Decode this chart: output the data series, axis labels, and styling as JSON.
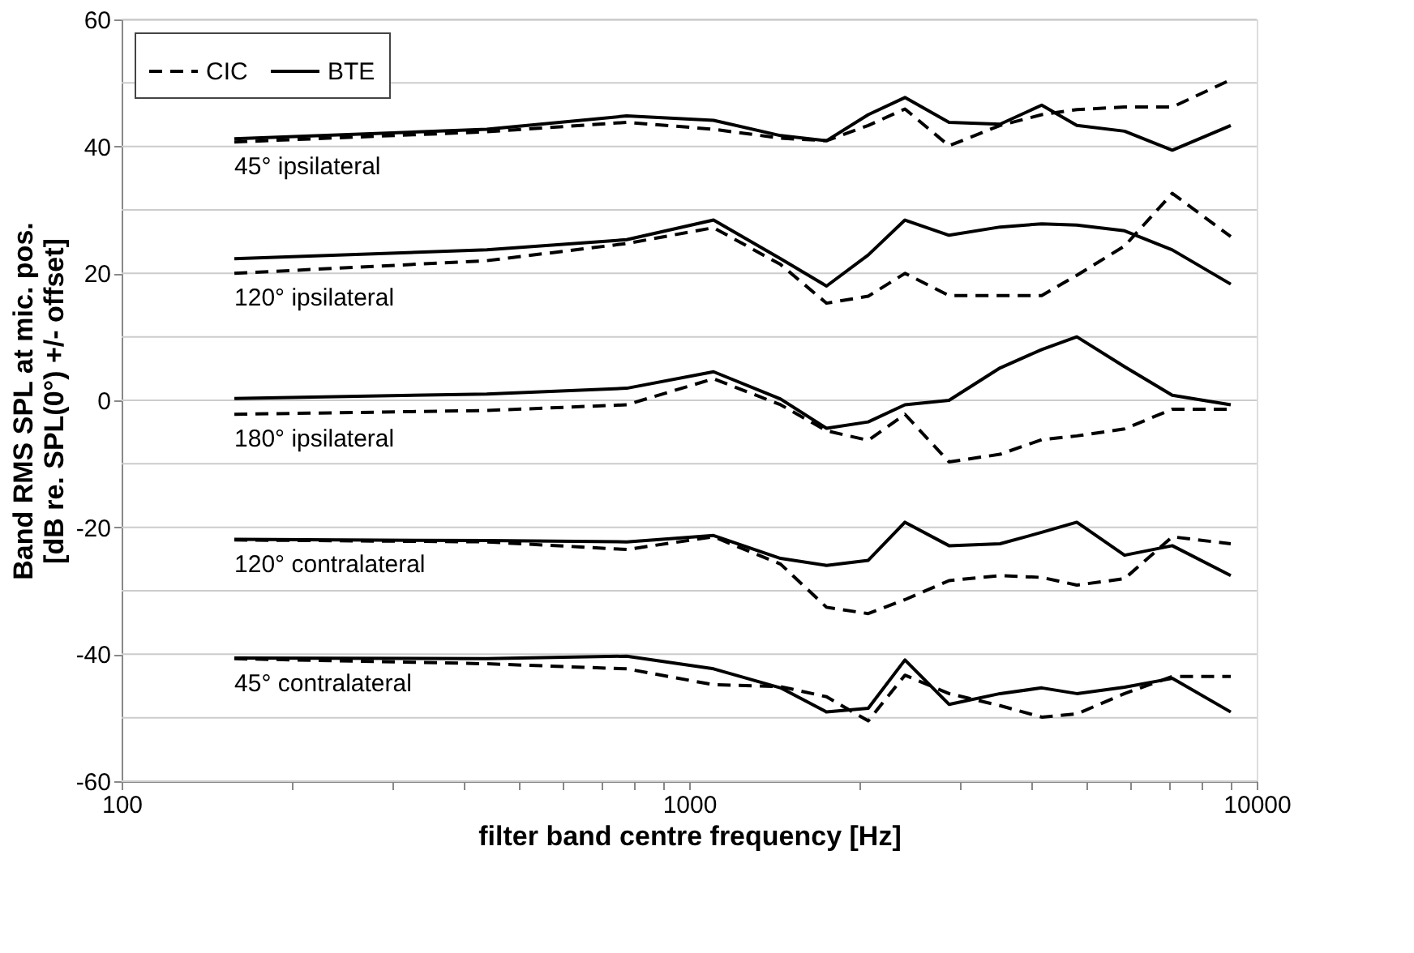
{
  "chart_data": {
    "type": "line",
    "xlabel": "filter band centre frequency [Hz]",
    "ylabel": "Band RMS SPL at mic. pos. [dB re. SPL(0°) +/- offset]",
    "x": [
      158,
      440,
      776,
      1104,
      1449,
      1746,
      2068,
      2400,
      2870,
      3530,
      4180,
      4820,
      5850,
      7100,
      9000
    ],
    "series": [
      {
        "name": "CIC",
        "color": "#000000",
        "line_style": "dashed",
        "values": [
          40.7,
          42.3,
          43.8,
          42.7,
          41.3,
          40.9,
          43.3,
          45.9,
          40.1,
          43.3,
          45,
          45.8,
          46.2,
          46.2,
          50.5
        ]
      },
      {
        "name": "BTE",
        "color": "#000000",
        "line_style": "solid",
        "values": [
          41.2,
          42.7,
          44.8,
          44.1,
          41.7,
          40.9,
          45,
          47.7,
          43.8,
          43.5,
          46.5,
          43.3,
          42.4,
          39.4,
          43.3
        ]
      },
      {
        "color": "#000000",
        "line_style": "dashed",
        "values": [
          20,
          22,
          24.7,
          27.2,
          21.4,
          15.3,
          16.4,
          20,
          16.5,
          16.5,
          16.5,
          19.7,
          24.3,
          32.6,
          25.8
        ]
      },
      {
        "color": "#000000",
        "line_style": "solid",
        "values": [
          22.3,
          23.7,
          25.3,
          28.4,
          22.3,
          18,
          22.9,
          28.4,
          26,
          27.3,
          27.8,
          27.6,
          26.7,
          23.7,
          18.3
        ]
      },
      {
        "color": "#000000",
        "line_style": "dashed",
        "values": [
          -2.2,
          -1.6,
          -0.7,
          3.4,
          -0.7,
          -4.8,
          -6.3,
          -2.2,
          -9.7,
          -8.5,
          -6.2,
          -5.6,
          -4.5,
          -1.4,
          -1.4
        ]
      },
      {
        "color": "#000000",
        "line_style": "solid",
        "values": [
          0.3,
          1,
          1.9,
          4.5,
          0.2,
          -4.4,
          -3.4,
          -0.7,
          0,
          5.1,
          8,
          10,
          5.3,
          0.8,
          -0.7
        ]
      },
      {
        "color": "#000000",
        "line_style": "dashed",
        "values": [
          -22,
          -22.3,
          -23.5,
          -21.5,
          -25.8,
          -32.6,
          -33.6,
          -31.4,
          -28.4,
          -27.6,
          -27.9,
          -29.1,
          -28.1,
          -21.5,
          -22.6
        ]
      },
      {
        "color": "#000000",
        "line_style": "solid",
        "values": [
          -21.9,
          -22.1,
          -22.3,
          -21.3,
          -24.9,
          -26,
          -25.2,
          -19.2,
          -22.9,
          -22.6,
          -20.8,
          -19.2,
          -24.4,
          -22.9,
          -27.6
        ]
      },
      {
        "color": "#000000",
        "line_style": "dashed",
        "values": [
          -40.7,
          -41.5,
          -42.3,
          -44.8,
          -45.1,
          -46.7,
          -50.5,
          -43.3,
          -46.2,
          -48.1,
          -49.9,
          -49.4,
          -46.2,
          -43.5,
          -43.5
        ]
      },
      {
        "color": "#000000",
        "line_style": "solid",
        "values": [
          -40.6,
          -40.7,
          -40.3,
          -42.3,
          -45.3,
          -49.1,
          -48.5,
          -40.9,
          -47.9,
          -46.2,
          -45.3,
          -46.2,
          -45.2,
          -43.8,
          -49.1
        ]
      }
    ],
    "annotations": [
      "45° ipsilateral",
      "120° ipsilateral",
      "180° ipsilateral",
      "120° contralateral",
      "45° contralateral"
    ],
    "log": "x",
    "xlim": [
      100,
      10000
    ],
    "xticks": [
      100,
      {
        "value": 200,
        "label": null
      },
      {
        "value": 300,
        "label": null
      },
      {
        "value": 400,
        "label": null
      },
      {
        "value": 500,
        "label": null
      },
      {
        "value": 600,
        "label": null
      },
      {
        "value": 700,
        "label": null
      },
      {
        "value": 800,
        "label": null
      },
      {
        "value": 900,
        "label": null
      },
      1000,
      {
        "value": 2000,
        "label": null
      },
      {
        "value": 3000,
        "label": null
      },
      {
        "value": 4000,
        "label": null
      },
      {
        "value": 5000,
        "label": null
      },
      {
        "value": 6000,
        "label": null
      },
      {
        "value": 7000,
        "label": null
      },
      {
        "value": 8000,
        "label": null
      },
      {
        "value": 9000,
        "label": null
      },
      10000
    ],
    "ylim": [
      -60,
      60
    ],
    "yticks": [
      -60,
      {
        "value": -50,
        "label": null
      },
      -40,
      {
        "value": -30,
        "label": null
      },
      -20,
      {
        "value": -10,
        "label": null
      },
      0,
      {
        "value": 10,
        "label": null
      },
      20,
      {
        "value": 30,
        "label": null
      },
      40,
      {
        "value": 50,
        "label": null
      },
      60
    ],
    "grid": "y",
    "legend": "top left"
  }
}
